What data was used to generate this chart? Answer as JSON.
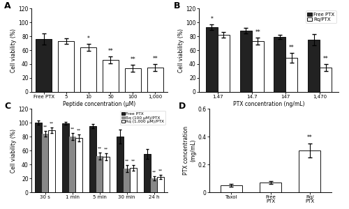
{
  "A": {
    "categories": [
      "Free PTX",
      "5",
      "10",
      "50",
      "100",
      "1,000"
    ],
    "values": [
      76,
      73,
      64,
      46,
      34,
      35
    ],
    "errors": [
      8,
      4,
      5,
      5,
      5,
      5
    ],
    "bar_colors": [
      "#222222",
      "#ffffff",
      "#ffffff",
      "#ffffff",
      "#ffffff",
      "#ffffff"
    ],
    "bar_edgecolors": [
      "#111111",
      "#111111",
      "#111111",
      "#111111",
      "#111111",
      "#111111"
    ],
    "sig": [
      "",
      "",
      "*",
      "**",
      "**",
      "**"
    ],
    "ylabel": "Cell viability (%)",
    "xlabel": "Peptide concentration (μM)",
    "ylim": [
      0,
      120
    ],
    "yticks": [
      0,
      20,
      40,
      60,
      80,
      100,
      120
    ],
    "panel": "A"
  },
  "B": {
    "categories": [
      "1.47",
      "14.7",
      "147",
      "1,470"
    ],
    "free_ptx": [
      93,
      88,
      79,
      75
    ],
    "free_ptx_err": [
      4,
      4,
      3,
      8
    ],
    "rq_ptx": [
      82,
      73,
      49,
      35
    ],
    "rq_ptx_err": [
      4,
      5,
      7,
      5
    ],
    "sig_free": [
      "*",
      "",
      "",
      ""
    ],
    "sig_rq": [
      "",
      "**",
      "**",
      "**"
    ],
    "ylabel": "Cell viability (%)",
    "xlabel": "PTX concentration (ng/mL)",
    "ylim": [
      0,
      120
    ],
    "yticks": [
      0,
      20,
      40,
      60,
      80,
      100,
      120
    ],
    "panel": "B"
  },
  "C": {
    "categories": [
      "30 s",
      "1 min",
      "5 min",
      "30 min",
      "24 h"
    ],
    "free_ptx": [
      100,
      99,
      95,
      80,
      55
    ],
    "free_ptx_err": [
      3,
      2,
      3,
      10,
      7
    ],
    "rq_100": [
      84,
      80,
      52,
      34,
      20
    ],
    "rq_100_err": [
      4,
      5,
      5,
      5,
      3
    ],
    "rq_1000": [
      89,
      78,
      51,
      35,
      22
    ],
    "rq_1000_err": [
      4,
      5,
      5,
      4,
      3
    ],
    "sig_100": [
      "**",
      "**",
      "**",
      "**",
      "**"
    ],
    "sig_1000": [
      "**",
      "**",
      "**",
      "**",
      "**"
    ],
    "ylabel": "Cell viability (%)",
    "ylim": [
      0,
      120
    ],
    "yticks": [
      0,
      20,
      40,
      60,
      80,
      100,
      120
    ],
    "panel": "C"
  },
  "D": {
    "categories": [
      "Taxol",
      "Free\nPTX",
      "Rq/\nPTX"
    ],
    "values": [
      0.05,
      0.07,
      0.3
    ],
    "errors": [
      0.01,
      0.01,
      0.05
    ],
    "bar_colors": [
      "#ffffff",
      "#ffffff",
      "#ffffff"
    ],
    "bar_edgecolors": [
      "#111111",
      "#111111",
      "#111111"
    ],
    "sig": [
      "",
      "",
      "**"
    ],
    "ylabel": "PTX concentration\n(mg/mL)",
    "ylim": [
      0,
      0.6
    ],
    "yticks": [
      0,
      0.2,
      0.4,
      0.6
    ],
    "panel": "D"
  }
}
